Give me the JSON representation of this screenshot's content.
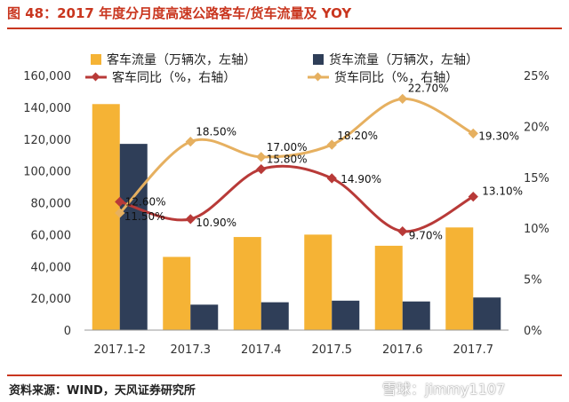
{
  "header": {
    "title": "图 48：2017 年度分月度高速公路客车/货车流量及 YOY"
  },
  "footer": {
    "source": "资料来源：WIND，天风证券研究所",
    "watermark": "雪球：jimmy1107"
  },
  "colors": {
    "accent": "#c9361f",
    "passenger_bar": "#f5b335",
    "truck_bar": "#2f3e58",
    "passenger_line": "#b83a38",
    "truck_line": "#e6b060",
    "axis_text": "#333333",
    "grid": "#e6e6e6"
  },
  "chart_data": {
    "type": "bar",
    "categories": [
      "2017.1-2",
      "2017.3",
      "2017.4",
      "2017.5",
      "2017.6",
      "2017.7"
    ],
    "y_left": {
      "min": 0,
      "max": 160000,
      "step": 20000,
      "ticks": [
        "0",
        "20,000",
        "40,000",
        "60,000",
        "80,000",
        "100,000",
        "120,000",
        "140,000",
        "160,000"
      ]
    },
    "y_right": {
      "min": 0,
      "max": 25,
      "step": 5,
      "ticks": [
        "0%",
        "5%",
        "10%",
        "15%",
        "20%",
        "25%"
      ]
    },
    "series": [
      {
        "name": "客车流量（万辆次，左轴）",
        "kind": "bar",
        "axis": "left",
        "values": [
          142000,
          46000,
          58500,
          60000,
          53000,
          64500
        ]
      },
      {
        "name": "货车流量（万辆次，左轴）",
        "kind": "bar",
        "axis": "left",
        "values": [
          117000,
          16000,
          17500,
          18500,
          18000,
          20500
        ]
      },
      {
        "name": "客车同比（%，右轴）",
        "kind": "line",
        "axis": "right",
        "values": [
          12.6,
          10.9,
          15.8,
          14.9,
          9.7,
          13.1
        ],
        "labels": [
          "12.60%",
          "10.90%",
          "15.80%",
          "14.90%",
          "9.70%",
          "13.10%"
        ]
      },
      {
        "name": "货车同比（%，右轴）",
        "kind": "line",
        "axis": "right",
        "values": [
          11.5,
          18.5,
          17.0,
          18.2,
          22.7,
          19.3
        ],
        "labels": [
          "11.50%",
          "18.50%",
          "17.00%",
          "18.20%",
          "22.70%",
          "19.30%"
        ]
      }
    ],
    "legend_position": "top",
    "grid": false
  }
}
